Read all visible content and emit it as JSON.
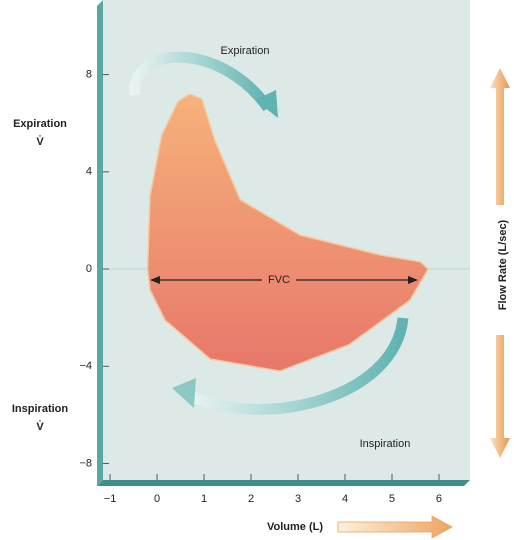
{
  "chart_data": {
    "type": "loop",
    "x_label": "Volume (L)",
    "y_label": "Flow Rate (L/sec)",
    "upper_label": [
      "Expiration",
      "V̇"
    ],
    "lower_label": [
      "Inspiration",
      "V̇"
    ],
    "annotations": [
      "Expiration",
      "Inspiration",
      "FVC"
    ],
    "xlim": [
      -1.15,
      6.66
    ],
    "ylim": [
      -8.68,
      11.07
    ],
    "xticks": [
      {
        "value": -1,
        "label": "−1"
      },
      0,
      1,
      2,
      3,
      4,
      5,
      6
    ],
    "yticks": [
      {
        "value": -8,
        "label": "−8"
      },
      {
        "value": -4,
        "label": "−4"
      },
      0,
      4,
      8
    ],
    "series": [
      {
        "color_top": "#f6b27a",
        "color_bottom": "#e8776a",
        "x": [
          -0.2,
          -0.15,
          0.1,
          0.45,
          0.7,
          0.95,
          1.23,
          1.77,
          3.04,
          4.74,
          5.6,
          5.77,
          5.38,
          4.1,
          2.62,
          1.13,
          0.17,
          -0.15
        ],
        "y": [
          0,
          3,
          5.5,
          6.9,
          7.2,
          7.0,
          5.3,
          2.85,
          1.4,
          0.58,
          0.3,
          0,
          -1.28,
          -3.1,
          -4.2,
          -3.7,
          -2.1,
          -0.86
        ]
      }
    ]
  }
}
